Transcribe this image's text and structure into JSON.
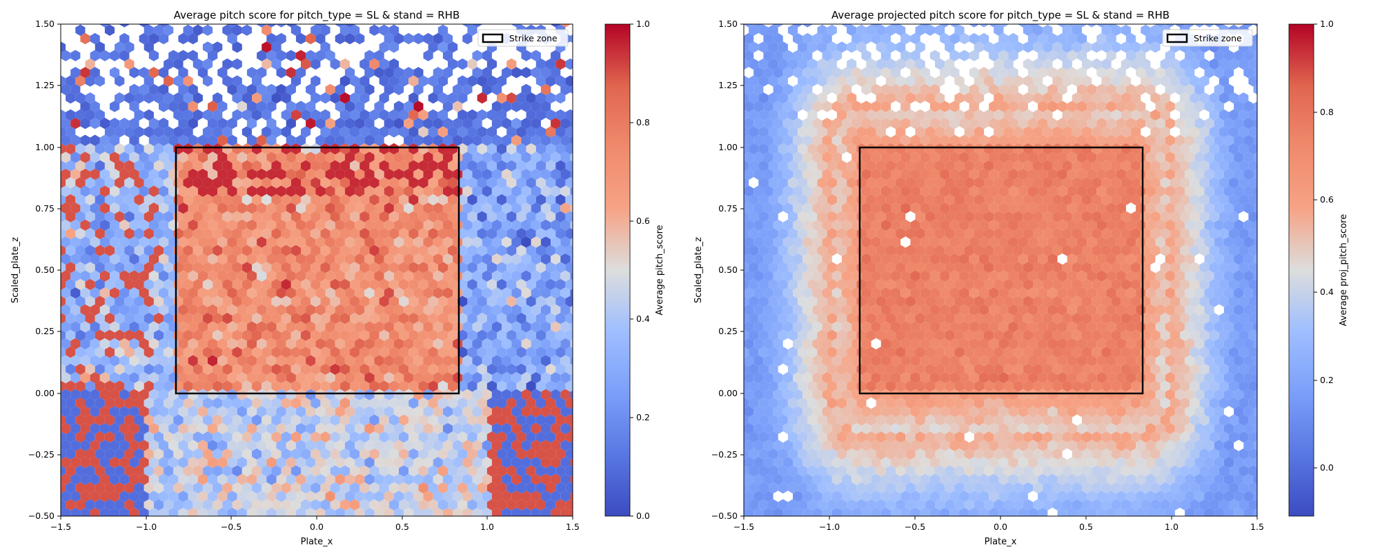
{
  "chart_data": [
    {
      "type": "heatmap",
      "subtype": "hexbin",
      "title": "Average pitch score for pitch_type = SL & stand = RHB",
      "xlabel": "Plate_x",
      "ylabel": "Scaled_plate_z",
      "xlim": [
        -1.5,
        1.5
      ],
      "ylim": [
        -0.5,
        1.5
      ],
      "x_ticks": [
        "−1.5",
        "−1.0",
        "−0.5",
        "0.0",
        "0.5",
        "1.0",
        "1.5"
      ],
      "y_ticks": [
        "−0.50",
        "−0.25",
        "0.00",
        "0.25",
        "0.50",
        "0.75",
        "1.00",
        "1.25",
        "1.50"
      ],
      "colorbar": {
        "label": "Average pitch_score",
        "range": [
          0.0,
          1.0
        ],
        "ticks": [
          "0.0",
          "0.2",
          "0.4",
          "0.6",
          "0.8",
          "1.0"
        ],
        "colormap": "coolwarm"
      },
      "strike_zone": {
        "x": [
          -0.83,
          0.83
        ],
        "z": [
          0.0,
          1.0
        ]
      },
      "legend": {
        "label": "Strike zone",
        "placement": "top-right"
      },
      "grid": false,
      "pattern": "noisy; high (red, ~0.7-1.0) inside strike zone, low (blue, ~0.0-0.2) above zone and on far edges",
      "region_means": {
        "inside_zone": 0.72,
        "above_zone": 0.12,
        "below_zone": 0.45,
        "left_edge": 0.35,
        "right_edge": 0.3
      }
    },
    {
      "type": "heatmap",
      "subtype": "hexbin",
      "title": "Average projected pitch score for pitch_type = SL & stand = RHB",
      "xlabel": "Plate_x",
      "ylabel": "Scaled_plate_z",
      "xlim": [
        -1.5,
        1.5
      ],
      "ylim": [
        -0.5,
        1.5
      ],
      "x_ticks": [
        "−1.5",
        "−1.0",
        "−0.5",
        "0.0",
        "0.5",
        "1.0",
        "1.5"
      ],
      "y_ticks": [
        "−0.50",
        "−0.25",
        "0.00",
        "0.25",
        "0.50",
        "0.75",
        "1.00",
        "1.25",
        "1.50"
      ],
      "colorbar": {
        "label": "Average proj_pitch_score",
        "range": [
          -0.12,
          1.0
        ],
        "ticks": [
          "0.0",
          "0.2",
          "0.4",
          "0.6",
          "0.8",
          "1.0"
        ],
        "colormap": "coolwarm"
      },
      "strike_zone": {
        "x": [
          -0.83,
          0.83
        ],
        "z": [
          0.0,
          1.0
        ]
      },
      "legend": {
        "label": "Strike zone",
        "placement": "top-right"
      },
      "grid": false,
      "pattern": "smooth; ~0.72-0.8 inside strike zone, fading to ~0.4 around the zone and ~0.1-0.2 at outer edges",
      "region_means": {
        "inside_zone": 0.76,
        "near_zone": 0.45,
        "outer_edges": 0.15
      }
    }
  ]
}
